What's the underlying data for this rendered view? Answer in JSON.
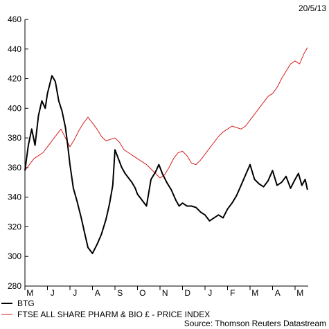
{
  "chart_data": {
    "type": "line",
    "date": "20/5/13",
    "source": "Source: Thomson Reuters Datastream",
    "ylim": [
      280,
      460
    ],
    "yticks": [
      280,
      300,
      320,
      340,
      360,
      380,
      400,
      420,
      440,
      460
    ],
    "months": [
      "M",
      "J",
      "J",
      "A",
      "S",
      "O",
      "N",
      "D",
      "J",
      "F",
      "M",
      "A",
      "M"
    ],
    "grid": false,
    "legend_position": "bottom-left",
    "series": [
      {
        "name": "BTG",
        "color": "#000000",
        "x": [
          0.0,
          0.15,
          0.3,
          0.45,
          0.6,
          0.75,
          0.9,
          1.0,
          1.2,
          1.35,
          1.5,
          1.65,
          1.8,
          1.9,
          2.0,
          2.15,
          2.3,
          2.5,
          2.65,
          2.8,
          3.0,
          3.2,
          3.4,
          3.6,
          3.75,
          3.9,
          4.0,
          4.15,
          4.3,
          4.45,
          4.6,
          4.75,
          4.9,
          5.0,
          5.2,
          5.4,
          5.6,
          5.8,
          5.95,
          6.1,
          6.3,
          6.5,
          6.7,
          6.85,
          7.0,
          7.2,
          7.4,
          7.6,
          7.8,
          8.0,
          8.2,
          8.4,
          8.6,
          8.8,
          9.0,
          9.2,
          9.4,
          9.6,
          9.8,
          10.0,
          10.2,
          10.4,
          10.6,
          10.8,
          11.0,
          11.2,
          11.4,
          11.6,
          11.8,
          12.0,
          12.15,
          12.3,
          12.45,
          12.55
        ],
        "values": [
          358,
          375,
          386,
          375,
          395,
          405,
          400,
          410,
          422,
          418,
          405,
          398,
          387,
          375,
          362,
          346,
          338,
          326,
          316,
          306,
          302,
          308,
          315,
          325,
          335,
          348,
          372,
          366,
          360,
          356,
          353,
          350,
          346,
          342,
          338,
          334,
          352,
          357,
          362,
          356,
          350,
          345,
          338,
          334,
          336,
          334,
          334,
          333,
          330,
          328,
          324,
          326,
          328,
          326,
          332,
          336,
          341,
          348,
          355,
          362,
          352,
          349,
          347,
          351,
          358,
          348,
          350,
          354,
          346,
          352,
          356,
          348,
          352,
          345
        ]
      },
      {
        "name": "FTSE ALL SHARE PHARM & BIO £ - PRICE INDEX",
        "color": "#d61e1e",
        "x": [
          0.0,
          0.2,
          0.4,
          0.6,
          0.8,
          1.0,
          1.2,
          1.4,
          1.6,
          1.8,
          2.0,
          2.2,
          2.4,
          2.6,
          2.8,
          3.0,
          3.2,
          3.4,
          3.6,
          3.8,
          4.0,
          4.2,
          4.4,
          4.6,
          4.8,
          5.0,
          5.2,
          5.4,
          5.6,
          5.8,
          6.0,
          6.2,
          6.4,
          6.6,
          6.8,
          7.0,
          7.2,
          7.4,
          7.6,
          7.8,
          8.0,
          8.2,
          8.4,
          8.6,
          8.8,
          9.0,
          9.2,
          9.4,
          9.6,
          9.8,
          10.0,
          10.2,
          10.4,
          10.6,
          10.8,
          11.0,
          11.2,
          11.4,
          11.6,
          11.8,
          12.0,
          12.2,
          12.4,
          12.55
        ],
        "values": [
          358,
          362,
          366,
          368,
          370,
          374,
          378,
          382,
          386,
          380,
          374,
          379,
          385,
          390,
          394,
          390,
          386,
          381,
          378,
          379,
          380,
          377,
          372,
          370,
          368,
          366,
          364,
          362,
          359,
          356,
          353,
          355,
          360,
          366,
          370,
          371,
          368,
          363,
          362,
          365,
          369,
          373,
          377,
          381,
          384,
          386,
          388,
          387,
          386,
          388,
          392,
          396,
          400,
          404,
          408,
          410,
          414,
          420,
          425,
          430,
          432,
          430,
          437,
          441
        ]
      }
    ]
  }
}
